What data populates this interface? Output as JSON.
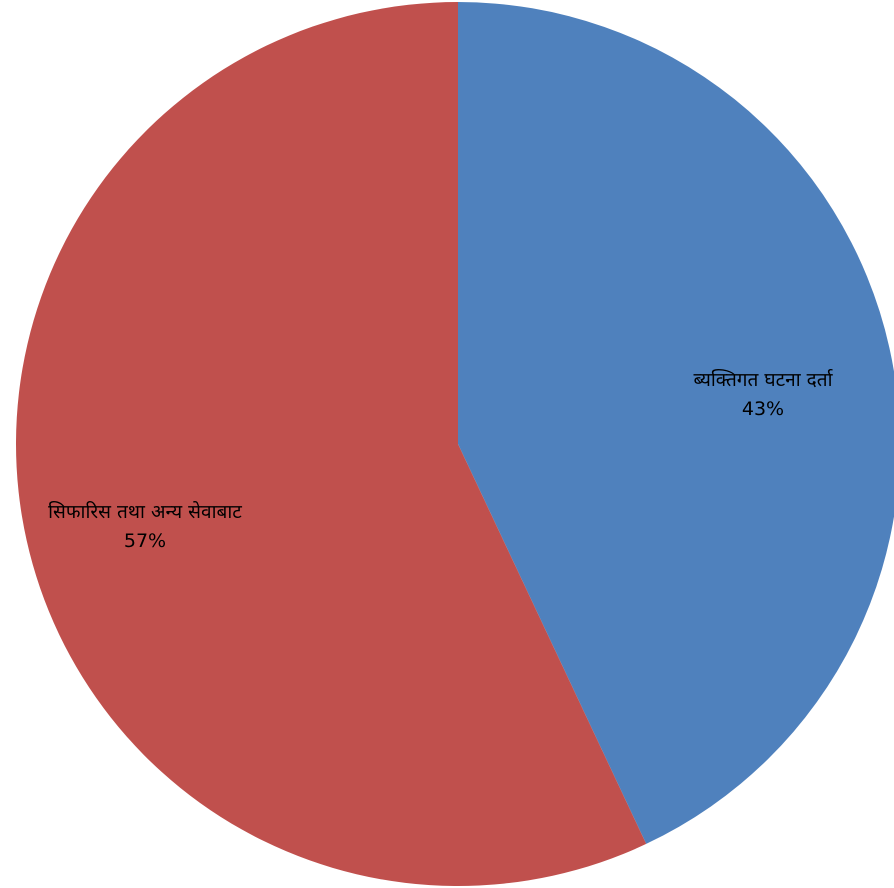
{
  "chart_data": {
    "type": "pie",
    "title": "",
    "slices": [
      {
        "label": "ब्यक्तिगत घटना दर्ता",
        "value": 43,
        "percent_label": "43%",
        "color": "#4f81bd"
      },
      {
        "label": "सिफारिस तथा अन्य सेवाबाट",
        "value": 57,
        "percent_label": "57%",
        "color": "#c0504d"
      }
    ],
    "start_angle_deg": 0,
    "direction": "clockwise"
  }
}
